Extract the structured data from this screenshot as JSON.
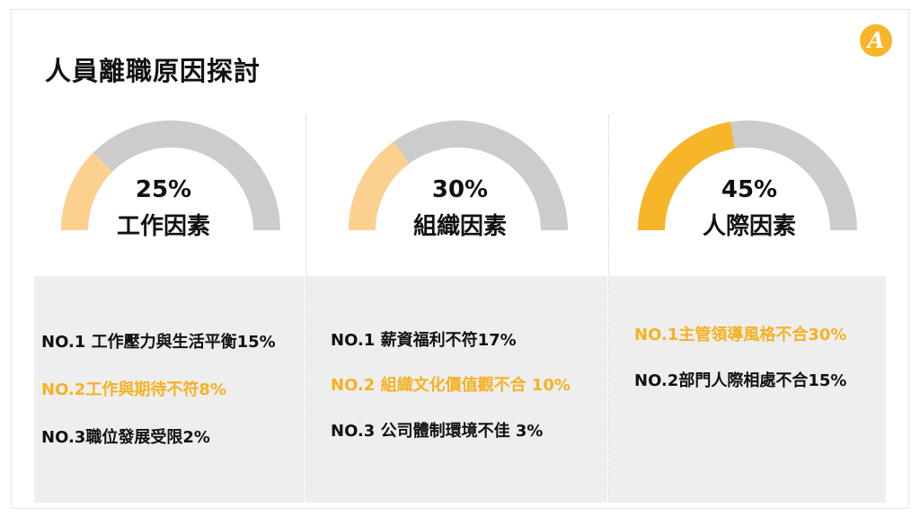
{
  "title": "人員離職原因探討",
  "logo_letter": "A",
  "colors": {
    "accent": "#f7b52a",
    "accent_light": "#fcd190",
    "track": "#cccccc",
    "panel": "#eeeeee",
    "highlight_text": "#f4b223"
  },
  "chart_data": [
    {
      "type": "gauge",
      "value": 25,
      "label": "25%",
      "category": "工作因素",
      "fill_color": "#fcd190"
    },
    {
      "type": "gauge",
      "value": 30,
      "label": "30%",
      "category": "組織因素",
      "fill_color": "#fcd190"
    },
    {
      "type": "gauge",
      "value": 45,
      "label": "45%",
      "category": "人際因素",
      "fill_color": "#f7b52a"
    }
  ],
  "columns": [
    {
      "items": [
        {
          "text": "NO.1 工作壓力與生活平衡15%",
          "highlight": false
        },
        {
          "text": "NO.2工作與期待不符8%",
          "highlight": true
        },
        {
          "text": "NO.3職位發展受限2%",
          "highlight": false
        }
      ]
    },
    {
      "items": [
        {
          "text": "NO.1 薪資福利不符17%",
          "highlight": false
        },
        {
          "text": "NO.2 組織文化價值觀不合 10%",
          "highlight": true
        },
        {
          "text": "NO.3 公司體制環境不佳 3%",
          "highlight": false
        }
      ]
    },
    {
      "items": [
        {
          "text": "NO.1主管領導風格不合30%",
          "highlight": true
        },
        {
          "text": "NO.2部門人際相處不合15%",
          "highlight": false
        }
      ]
    }
  ]
}
